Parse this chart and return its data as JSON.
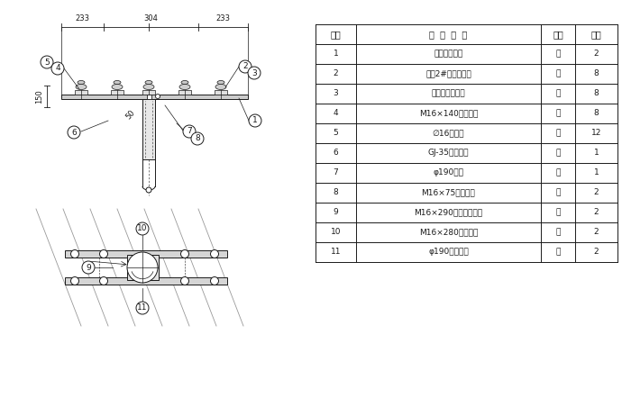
{
  "bg_color": "#ffffff",
  "lc": "#1a1a1a",
  "table_headers": [
    "编号",
    "规  格  名  称",
    "单位",
    "数量"
  ],
  "table_rows": [
    [
      "1",
      "绝缘导线楔框",
      "根",
      "2"
    ],
    [
      "2",
      "低压2#蝴蝶瓷绝子",
      "只",
      "8"
    ],
    [
      "3",
      "帮模型绝缘扎线",
      "卷",
      "8"
    ],
    [
      "4",
      "M16×140单相螺栓",
      "只",
      "8"
    ],
    [
      "5",
      "∅16圆垫圈",
      "个",
      "12"
    ],
    [
      "6",
      "GJ-35拉线装置",
      "套",
      "1"
    ],
    [
      "7",
      "φ190地盘",
      "副",
      "1"
    ],
    [
      "8",
      "M16×75单相螺栓",
      "只",
      "2"
    ],
    [
      "9",
      "M16×290双头四相螺栓",
      "只",
      "2"
    ],
    [
      "10",
      "M16×280单相螺栓",
      "只",
      "2"
    ],
    [
      "11",
      "φ190圆杆抱架",
      "块",
      "2"
    ]
  ],
  "dim_233_left": "233",
  "dim_304": "304",
  "dim_233_right": "233",
  "dim_150": "150",
  "dim_50": "50"
}
